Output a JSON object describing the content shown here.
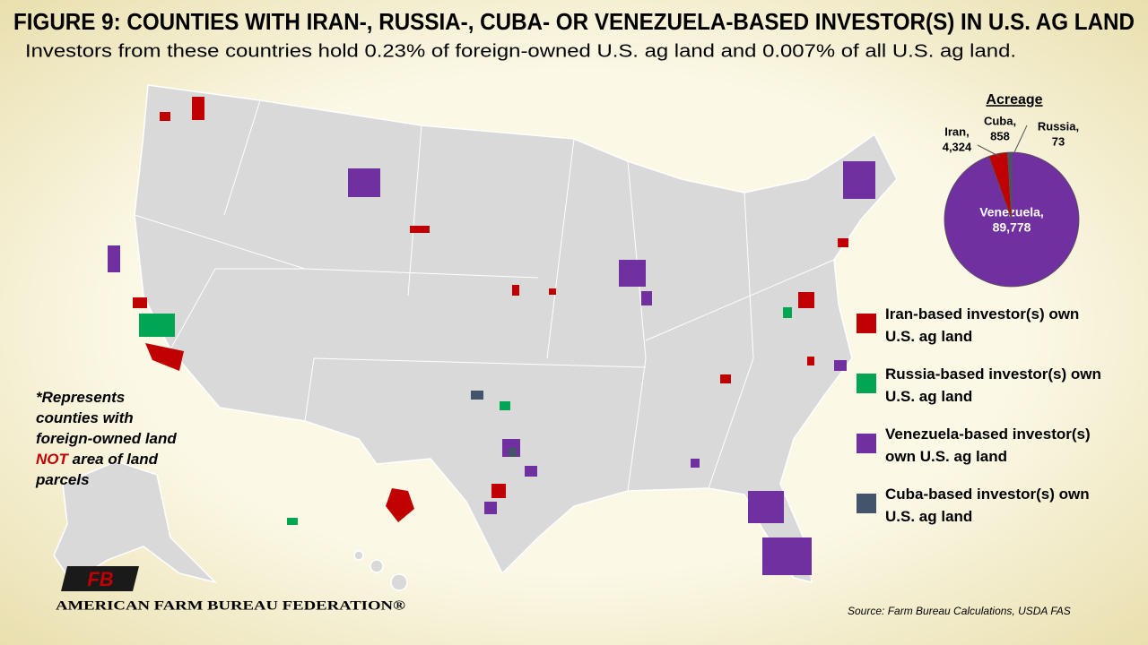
{
  "header": {
    "title": "FIGURE 9: COUNTIES WITH IRAN-, RUSSIA-, CUBA- OR VENEZUELA-BASED INVESTOR(S) IN U.S. AG LAND",
    "subtitle": "Investors from these countries hold 0.23% of foreign-owned U.S. ag land and 0.007% of all U.S. ag land."
  },
  "chart_data": {
    "type": "pie",
    "title": "Acreage",
    "categories": [
      "Venezuela,",
      "Iran,",
      "Cuba,",
      "Russia,"
    ],
    "values": [
      89778,
      4324,
      858,
      73
    ],
    "value_labels": [
      "89,778",
      "4,324",
      "858",
      "73"
    ],
    "colors": [
      "#7030a0",
      "#c00000",
      "#44546a",
      "#00a651"
    ]
  },
  "legend": [
    {
      "label": "Iran-based investor(s) own U.S. ag land",
      "color": "#c00000"
    },
    {
      "label": "Russia-based investor(s) own U.S. ag land",
      "color": "#00a651"
    },
    {
      "label": "Venezuela-based investor(s) own U.S. ag land",
      "color": "#7030a0"
    },
    {
      "label": "Cuba-based investor(s) own U.S. ag land",
      "color": "#44546a"
    }
  ],
  "note": {
    "before": "*Represents counties with foreign-owned land",
    "emphasis": "NOT",
    "after": "area of land parcels"
  },
  "source": "Source: Farm Bureau Calculations, USDA FAS",
  "logo": {
    "letters": "FB",
    "name": "AMERICAN FARM BUREAU FEDERATION®"
  }
}
